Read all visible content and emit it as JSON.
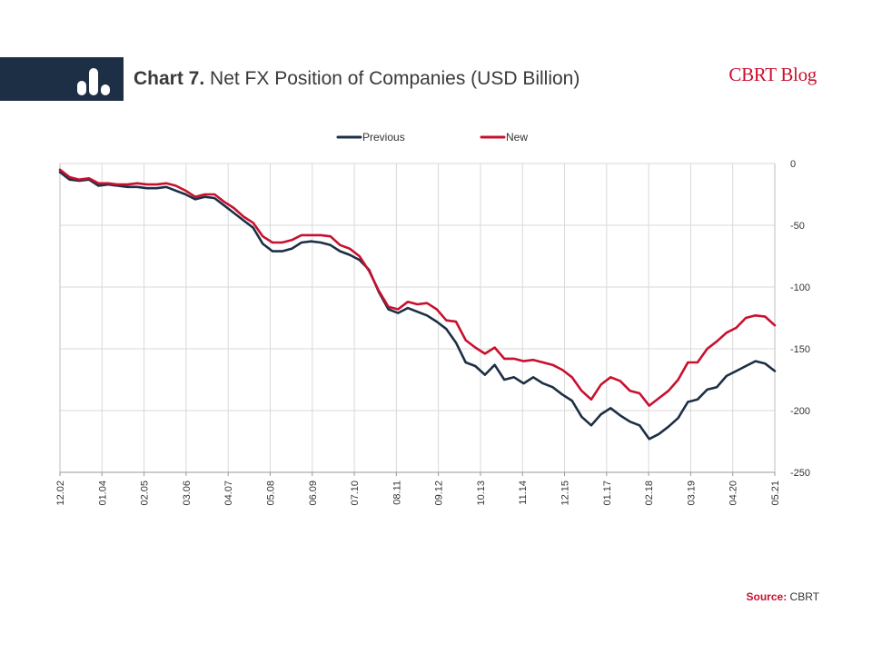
{
  "header": {
    "chart_number": "Chart 7.",
    "title": "Net FX Position of Companies (USD Billion)",
    "brand": "CBRT Blog",
    "icon": "bar-chart-icon"
  },
  "source": {
    "label": "Source:",
    "value": "CBRT"
  },
  "colors": {
    "header_band": "#1d2f45",
    "previous": "#1d2f45",
    "new": "#c8102e",
    "brand": "#c8102e"
  },
  "chart_data": {
    "type": "line",
    "title": "Net FX Position of Companies (USD Billion)",
    "x_ticks": [
      "12.02",
      "01.04",
      "02.05",
      "03.06",
      "04.07",
      "05.08",
      "06.09",
      "07.10",
      "08.11",
      "09.12",
      "10.13",
      "11.14",
      "12.15",
      "01.17",
      "02.18",
      "03.19",
      "04.20",
      "05.21"
    ],
    "ylim": [
      -250,
      0
    ],
    "yticks": [
      0,
      -50,
      -100,
      -150,
      -200,
      -250
    ],
    "y_axis_position": "right",
    "grid": true,
    "legend_position": "top",
    "series": [
      {
        "name": "Previous",
        "color": "#1d2f45",
        "values": [
          -7,
          -13,
          -14,
          -13,
          -18,
          -17,
          -18,
          -19,
          -19,
          -20,
          -20,
          -19,
          -22,
          -25,
          -29,
          -27,
          -28,
          -34,
          -40,
          -46,
          -52,
          -65,
          -71,
          -71,
          -69,
          -64,
          -63,
          -64,
          -66,
          -71,
          -74,
          -78,
          -86,
          -104,
          -118,
          -121,
          -117,
          -120,
          -123,
          -128,
          -134,
          -145,
          -161,
          -164,
          -171,
          -163,
          -175,
          -173,
          -178,
          -173,
          -178,
          -181,
          -187,
          -192,
          -205,
          -212,
          -203,
          -198,
          -204,
          -209,
          -212,
          -223,
          -219,
          -213,
          -206,
          -193,
          -191,
          -183,
          -181,
          -172,
          -168,
          -164,
          -160,
          -162,
          -168
        ]
      },
      {
        "name": "New",
        "color": "#c8102e",
        "values": [
          -5,
          -11,
          -13,
          -12,
          -16,
          -16,
          -17,
          -17,
          -16,
          -17,
          -17,
          -16,
          -18,
          -22,
          -27,
          -25,
          -25,
          -31,
          -36,
          -43,
          -48,
          -59,
          -64,
          -64,
          -62,
          -58,
          -58,
          -58,
          -59,
          -66,
          -69,
          -75,
          -87,
          -103,
          -116,
          -118,
          -112,
          -114,
          -113,
          -118,
          -127,
          -128,
          -143,
          -149,
          -154,
          -149,
          -158,
          -158,
          -160,
          -159,
          -161,
          -163,
          -167,
          -173,
          -184,
          -191,
          -179,
          -173,
          -176,
          -184,
          -186,
          -196,
          -190,
          -184,
          -175,
          -161,
          -161,
          -150,
          -144,
          -137,
          -133,
          -125,
          -123,
          -124,
          -131
        ]
      }
    ]
  }
}
